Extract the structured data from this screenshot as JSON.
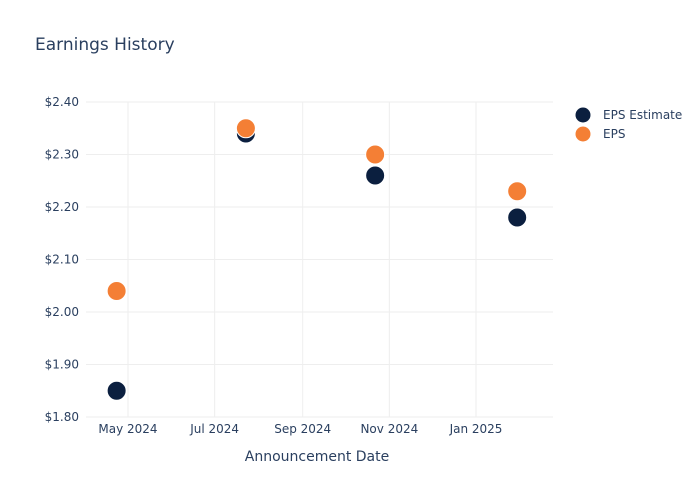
{
  "chart_data": {
    "type": "scatter",
    "title": "Earnings History",
    "xlabel": "Announcement Date",
    "ylabel": "",
    "x_tick_labels": [
      "May 2024",
      "Jul 2024",
      "Sep 2024",
      "Nov 2024",
      "Jan 2025"
    ],
    "y_tick_labels": [
      "$1.80",
      "$1.90",
      "$2.00",
      "$2.10",
      "$2.20",
      "$2.30",
      "$2.40"
    ],
    "y_ticks": [
      1.8,
      1.9,
      2.0,
      2.1,
      2.2,
      2.3,
      2.4
    ],
    "ylim": [
      1.8,
      2.4
    ],
    "grid": true,
    "legend_position": "top-right",
    "series": [
      {
        "name": "EPS Estimate",
        "color": "#0b1f3f",
        "points": [
          {
            "x": "2024-04-23",
            "y": 1.85
          },
          {
            "x": "2024-07-23",
            "y": 2.34
          },
          {
            "x": "2024-10-22",
            "y": 2.26
          },
          {
            "x": "2025-01-30",
            "y": 2.18
          }
        ]
      },
      {
        "name": "EPS",
        "color": "#f47f35",
        "points": [
          {
            "x": "2024-04-23",
            "y": 2.04
          },
          {
            "x": "2024-07-23",
            "y": 2.35
          },
          {
            "x": "2024-10-22",
            "y": 2.3
          },
          {
            "x": "2025-01-30",
            "y": 2.23
          }
        ]
      }
    ]
  }
}
